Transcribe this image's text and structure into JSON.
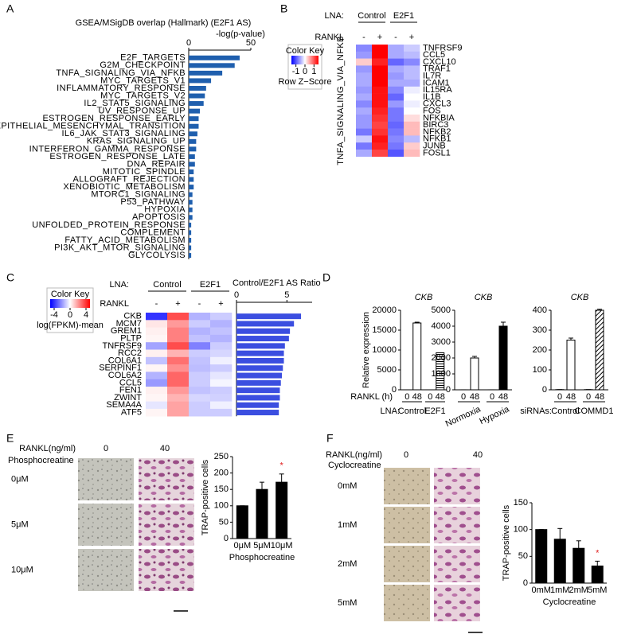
{
  "chart_data": [
    {
      "panel": "A",
      "type": "hbar",
      "title": "GSEA/MSigDB overlap (Hallmark) (E2F1 AS)",
      "xlabel": "-log(p-value)",
      "color": "#1f5fae",
      "xlim": [
        0,
        50
      ],
      "xticks": [
        0,
        50
      ],
      "categories": [
        "E2F_TARGETS",
        "G2M_CHECKPOINT",
        "TNFA_SIGNALING_VIA_NFKB",
        "MYC_TARGETS_V1",
        "INFLAMMATORY_RESPONSE",
        "MYC_TARGETS_V2",
        "IL2_STAT5_SIGNALING",
        "UV_RESPONSE_UP",
        "ESTROGEN_RESPONSE_EARLY",
        "EPITHELIAL_MESENCHYMAL_TRANSITION",
        "IL6_JAK_STAT3_SIGNALING",
        "KRAS_SIGNALING_UP",
        "INTERFERON_GAMMA_RESPONSE",
        "ESTROGEN_RESPONSE_LATE",
        "DNA_REPAIR",
        "MITOTIC_SPINDLE",
        "ALLOGRAFT_REJECTION",
        "XENOBIOTIC_METABOLISM",
        "MTORC1_SIGNALING",
        "P53_PATHWAY",
        "HYPOXIA",
        "APOPTOSIS",
        "UNFOLDED_PROTEIN_RESPONSE",
        "COMPLEMENT",
        "FATTY_ACID_METABOLISM",
        "PI3K_AKT_MTOR_SIGNALING",
        "GLYCOLYSIS"
      ],
      "values": [
        41,
        37,
        27,
        18,
        14,
        13,
        12,
        9,
        8,
        8,
        7,
        6,
        6,
        5,
        5,
        4,
        4,
        4,
        3,
        3,
        3,
        3,
        2,
        2,
        2,
        2,
        2
      ]
    },
    {
      "panel": "B",
      "type": "heatmap",
      "group_prefix": "LNA:",
      "groups": [
        "Control",
        "E2F1"
      ],
      "column_prefix": "RANKL",
      "columns": [
        "-",
        "+",
        "-",
        "+"
      ],
      "key_title": "Color Key",
      "key_label": "Row Z−Score",
      "clim": [
        -1.5,
        1.5
      ],
      "key_ticks": [
        -1,
        0,
        1
      ],
      "row_title": "TNFA_SIGNALING_VIA_NFKB",
      "rows": [
        "TNFRSF9",
        "CCL5",
        "CXCL10",
        "TRAF1",
        "IL7R",
        "ICAM1",
        "IL15RA",
        "IL1B",
        "CXCL3",
        "FOS",
        "NFKBIA",
        "BIRC3",
        "NFKB2",
        "NFKB1",
        "JUNB",
        "FOSL1"
      ],
      "values": [
        [
          -0.7,
          1.5,
          -0.5,
          -0.3
        ],
        [
          -0.6,
          1.5,
          -0.5,
          -0.4
        ],
        [
          0.3,
          1.3,
          -0.9,
          -0.7
        ],
        [
          -0.6,
          1.5,
          -0.5,
          -0.4
        ],
        [
          -0.5,
          1.5,
          -0.6,
          -0.4
        ],
        [
          -0.5,
          1.5,
          -0.5,
          -0.5
        ],
        [
          -0.6,
          1.4,
          -0.7,
          -0.1
        ],
        [
          -0.5,
          1.4,
          -0.9,
          0
        ],
        [
          -0.7,
          1.4,
          -0.6,
          -0.1
        ],
        [
          -0.5,
          1.3,
          -0.8,
          0
        ],
        [
          -0.6,
          1.2,
          -0.8,
          0.2
        ],
        [
          -0.6,
          1.1,
          -0.9,
          0.4
        ],
        [
          -0.8,
          1.2,
          -0.8,
          0.4
        ],
        [
          -0.3,
          1.4,
          -0.7,
          -0.4
        ],
        [
          -0.8,
          1.3,
          -0.8,
          0.3
        ],
        [
          -0.5,
          1.1,
          -1,
          0.4
        ]
      ]
    },
    {
      "panel": "C",
      "type": "heatmap",
      "group_prefix": "LNA:",
      "groups": [
        "Control",
        "E2F1"
      ],
      "column_prefix": "RANKL",
      "columns": [
        "-",
        "+",
        "-",
        "+"
      ],
      "key_title": "Color Key",
      "key_label": "log(FPKM)-mean",
      "clim": [
        -5,
        5
      ],
      "key_ticks": [
        -4,
        0,
        4
      ],
      "rows": [
        "CKB",
        "MCM7",
        "GREM1",
        "PLTP",
        "TNFRSF9",
        "RCC2",
        "COL6A1",
        "SERPINF1",
        "COL6A2",
        "CCL5",
        "FEN1",
        "ZWINT",
        "SEMA4A",
        "ATF5"
      ],
      "values": [
        [
          -4,
          3.5,
          -1.5,
          -1
        ],
        [
          0.5,
          2,
          -1,
          -1.5
        ],
        [
          0.3,
          2.5,
          -1.5,
          -1.2
        ],
        [
          0.2,
          2.5,
          -1.2,
          -1.5
        ],
        [
          -1.8,
          3.5,
          -2.5,
          -1
        ],
        [
          0.3,
          1.5,
          -1,
          -0.8
        ],
        [
          -1.2,
          2.8,
          -1.2,
          -0.3
        ],
        [
          0.2,
          2.2,
          -1.3,
          -1
        ],
        [
          -1.5,
          3,
          -1,
          -0.5
        ],
        [
          -2,
          3,
          -1,
          -0.2
        ],
        [
          0.3,
          2,
          -1.2,
          -1
        ],
        [
          0.2,
          1.5,
          -0.8,
          -0.9
        ],
        [
          -0.5,
          1.8,
          -1,
          -0.3
        ],
        [
          0.2,
          1.8,
          -1,
          -1
        ]
      ]
    },
    {
      "type": "hbar",
      "xlabel": "Control/E2F1 AS Ratio",
      "color": "#3b4ee0",
      "xlim": [
        0,
        7.5
      ],
      "xticks": [
        0,
        5
      ],
      "values": [
        6.4,
        5.7,
        5.3,
        5.2,
        4.8,
        4.7,
        4.7,
        4.6,
        4.5,
        4.4,
        4.3,
        4.3,
        4.2,
        4.2
      ]
    },
    {
      "panel": "D",
      "type": "bar",
      "title": "CKB",
      "ylabel": "Relative expression",
      "row_prefix": "RANKL (h)",
      "group_prefix": "LNA:",
      "groups": [
        "Control",
        "E2F1"
      ],
      "categories": [
        "0",
        "48",
        "0",
        "48"
      ],
      "values": [
        1,
        16800,
        1,
        9300
      ],
      "errors": [
        0,
        200,
        0,
        0
      ],
      "bar_styles": [
        "open",
        "open",
        "open",
        "hlines"
      ],
      "ylim": [
        0,
        20000
      ],
      "yticks": [
        0,
        5000,
        10000,
        15000,
        20000
      ]
    },
    {
      "type": "bar",
      "title": "CKB",
      "groups": [
        "Normoxia",
        "Hypoxia"
      ],
      "categories": [
        "0",
        "48",
        "0",
        "48"
      ],
      "values": [
        1,
        2000,
        1,
        4000
      ],
      "errors": [
        0,
        100,
        0,
        250
      ],
      "bar_styles": [
        "open",
        "open",
        "open",
        "solid"
      ],
      "ylim": [
        0,
        5000
      ],
      "yticks": [
        0,
        1000,
        2000,
        3000,
        4000,
        5000
      ]
    },
    {
      "type": "bar",
      "title": "CKB",
      "group_prefix": "siRNAs:",
      "groups": [
        "Control",
        "COMMD1"
      ],
      "categories": [
        "0",
        "48",
        "0",
        "48"
      ],
      "values": [
        1,
        250,
        1,
        400
      ],
      "errors": [
        0,
        10,
        0,
        5
      ],
      "bar_styles": [
        "open",
        "open",
        "open",
        "dhatch"
      ],
      "ylim": [
        0,
        400
      ],
      "yticks": [
        0,
        100,
        200,
        300,
        400
      ]
    },
    {
      "type": "bar",
      "ylabel": "TRAP-positive cells",
      "xlabel": "Phosphocreatine",
      "categories": [
        "0μM",
        "5μM",
        "10μM"
      ],
      "values": [
        100,
        150,
        172
      ],
      "errors": [
        0,
        22,
        25
      ],
      "bar_styles": [
        "solid",
        "solid",
        "solid"
      ],
      "annotation": "*",
      "annotation_color": "#e02020",
      "ylim": [
        0,
        250
      ],
      "yticks": [
        0,
        50,
        100,
        150,
        200,
        250
      ]
    },
    {
      "type": "bar",
      "ylabel": "TRAP-positive cells",
      "xlabel": "Cyclocreatine",
      "categories": [
        "0mM",
        "1mM",
        "2mM",
        "5mM"
      ],
      "values": [
        100,
        82,
        65,
        32
      ],
      "errors": [
        0,
        20,
        14,
        9
      ],
      "bar_styles": [
        "solid",
        "solid",
        "solid",
        "solid"
      ],
      "annotation": "*",
      "annotation_color": "#e02020",
      "ylim": [
        0,
        150
      ],
      "yticks": [
        0,
        50,
        100,
        150
      ]
    }
  ],
  "image_panels": [
    {
      "panel": "E",
      "dose_label": "RANKL(ng/ml)",
      "doses": [
        "0",
        "40"
      ],
      "treatment": "Phosphocreatine",
      "rows": [
        "0μM",
        "5μM",
        "10μM"
      ]
    },
    {
      "panel": "F",
      "dose_label": "RANKL(ng/ml)",
      "doses": [
        "0",
        "40"
      ],
      "treatment": "Cyclocreatine",
      "rows": [
        "0mM",
        "1mM",
        "2mM",
        "5mM"
      ]
    }
  ]
}
